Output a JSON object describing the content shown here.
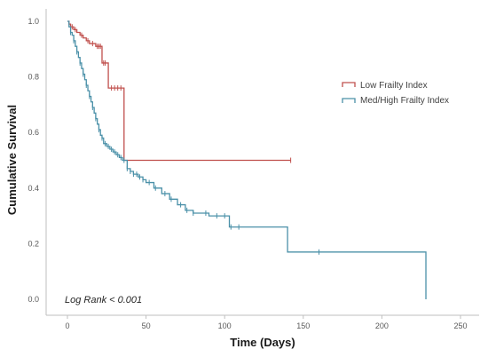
{
  "chart_data": {
    "type": "line",
    "subtype": "kaplan-meier",
    "xlabel": "Time (Days)",
    "ylabel": "Cumulative Survival",
    "xlim": [
      0,
      250
    ],
    "ylim": [
      0.0,
      1.0
    ],
    "x_ticks": [
      "0",
      "50",
      "100",
      "150",
      "200",
      "250"
    ],
    "y_ticks": [
      "0.0",
      "0.2",
      "0.4",
      "0.6",
      "0.8",
      "1.0"
    ],
    "grid": false,
    "legend_position": "top-right",
    "annotation": "Log Rank < 0.001",
    "series": [
      {
        "name": "Low Frailty Index",
        "color": "#c0504d",
        "steps": [
          [
            0,
            1.0
          ],
          [
            1,
            0.99
          ],
          [
            2,
            0.98
          ],
          [
            4,
            0.97
          ],
          [
            6,
            0.96
          ],
          [
            8,
            0.95
          ],
          [
            10,
            0.94
          ],
          [
            12,
            0.93
          ],
          [
            14,
            0.92
          ],
          [
            18,
            0.91
          ],
          [
            22,
            0.85
          ],
          [
            26,
            0.76
          ],
          [
            36,
            0.5
          ],
          [
            142,
            0.5
          ]
        ],
        "censored": [
          3,
          5,
          9,
          13,
          16,
          19,
          20,
          21,
          23,
          24,
          28,
          30,
          32,
          34,
          142
        ]
      },
      {
        "name": "Med/High Frailty Index",
        "color": "#4a90a8",
        "steps": [
          [
            0,
            1.0
          ],
          [
            1,
            0.98
          ],
          [
            2,
            0.96
          ],
          [
            3,
            0.95
          ],
          [
            4,
            0.93
          ],
          [
            5,
            0.91
          ],
          [
            6,
            0.89
          ],
          [
            7,
            0.87
          ],
          [
            8,
            0.85
          ],
          [
            9,
            0.83
          ],
          [
            10,
            0.81
          ],
          [
            11,
            0.79
          ],
          [
            12,
            0.77
          ],
          [
            13,
            0.75
          ],
          [
            14,
            0.73
          ],
          [
            15,
            0.71
          ],
          [
            16,
            0.69
          ],
          [
            17,
            0.67
          ],
          [
            18,
            0.65
          ],
          [
            19,
            0.63
          ],
          [
            20,
            0.61
          ],
          [
            21,
            0.59
          ],
          [
            22,
            0.58
          ],
          [
            23,
            0.56
          ],
          [
            25,
            0.55
          ],
          [
            27,
            0.54
          ],
          [
            29,
            0.53
          ],
          [
            31,
            0.52
          ],
          [
            33,
            0.51
          ],
          [
            35,
            0.5
          ],
          [
            38,
            0.47
          ],
          [
            40,
            0.46
          ],
          [
            42,
            0.45
          ],
          [
            45,
            0.44
          ],
          [
            48,
            0.43
          ],
          [
            50,
            0.42
          ],
          [
            55,
            0.4
          ],
          [
            60,
            0.38
          ],
          [
            65,
            0.36
          ],
          [
            70,
            0.34
          ],
          [
            75,
            0.32
          ],
          [
            80,
            0.31
          ],
          [
            90,
            0.3
          ],
          [
            103,
            0.26
          ],
          [
            140,
            0.17
          ],
          [
            228,
            0.0
          ]
        ],
        "censored": [
          2,
          4,
          6,
          8,
          10,
          12,
          14,
          16,
          18,
          20,
          22,
          24,
          26,
          28,
          30,
          32,
          34,
          36,
          38,
          40,
          42,
          44,
          46,
          48,
          52,
          56,
          62,
          66,
          72,
          76,
          80,
          88,
          95,
          100,
          104,
          109,
          160
        ]
      }
    ]
  }
}
